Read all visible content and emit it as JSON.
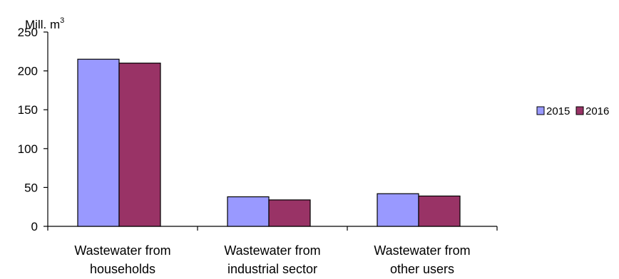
{
  "chart_data": {
    "type": "bar",
    "ylabel_unit": "Mill. m",
    "ylabel_unit_superscript": "3",
    "categories": [
      [
        "Wastewater from",
        "households"
      ],
      [
        "Wastewater from",
        "industrial sector"
      ],
      [
        "Wastewater from",
        "other users"
      ]
    ],
    "series": [
      {
        "name": "2015",
        "color": "#9999ff",
        "values": [
          215,
          38,
          42
        ]
      },
      {
        "name": "2016",
        "color": "#993366",
        "values": [
          210,
          34,
          39
        ]
      }
    ],
    "ylim": [
      0,
      250
    ],
    "yticks": [
      0,
      50,
      100,
      150,
      200,
      250
    ],
    "grid": false,
    "legend": "right"
  }
}
